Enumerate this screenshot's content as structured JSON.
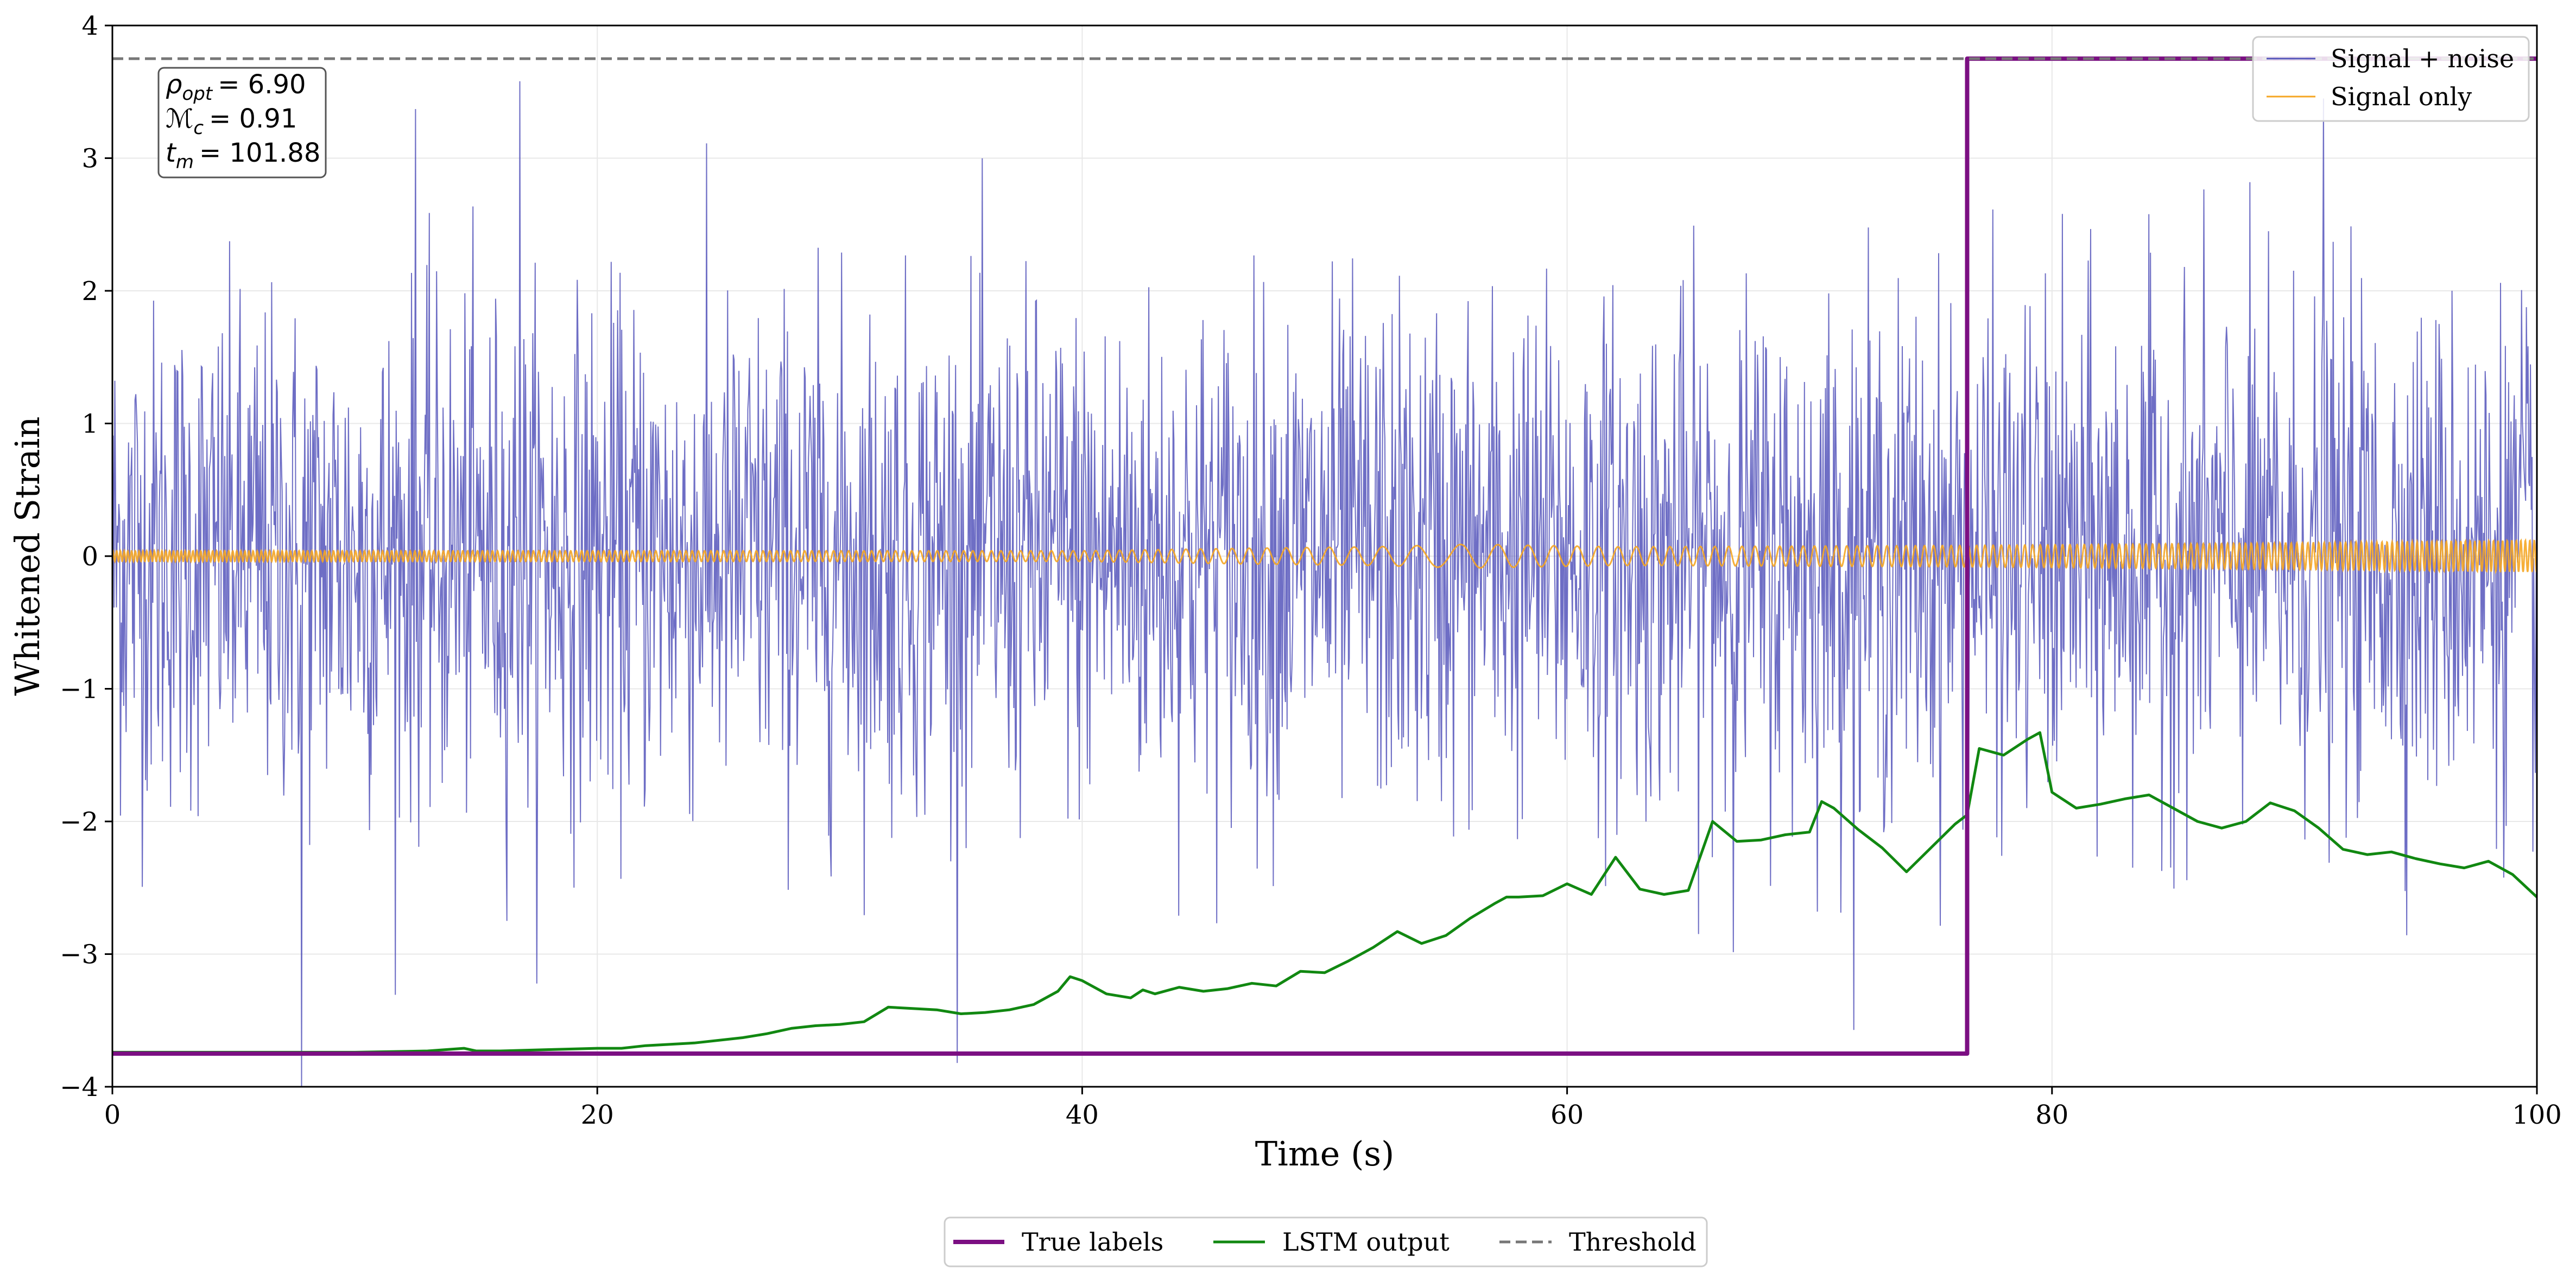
{
  "chart_data": {
    "type": "line",
    "title": "",
    "xlabel": "Time (s)",
    "ylabel": "Whitened Strain",
    "xlim": [
      0,
      100
    ],
    "ylim": [
      -4,
      4
    ],
    "x_ticks": [
      0,
      20,
      40,
      60,
      80,
      100
    ],
    "y_ticks": [
      -4,
      -3,
      -2,
      -1,
      0,
      1,
      2,
      3,
      4
    ],
    "grid": true,
    "annotation": {
      "lines": [
        {
          "symbol": "ρ",
          "sub": "opt",
          "value": "= 6.90"
        },
        {
          "symbol": "ℳ",
          "sub": "c",
          "value": "= 0.91"
        },
        {
          "symbol": "t",
          "sub": "m",
          "value": "= 101.88"
        }
      ]
    },
    "legend_upper": {
      "position": "top-right",
      "entries": [
        {
          "label": "Signal + noise",
          "color": "#5555bb"
        },
        {
          "label": "Signal only",
          "color": "#f5a623"
        }
      ]
    },
    "legend_lower": {
      "position": "bottom-center",
      "entries": [
        {
          "label": "True labels",
          "color": "#7b0f82",
          "style": "solid"
        },
        {
          "label": "LSTM output",
          "color": "#118811",
          "style": "solid"
        },
        {
          "label": "Threshold",
          "color": "#777777",
          "style": "dashed"
        }
      ]
    },
    "series": [
      {
        "name": "Signal + noise",
        "kind": "noise",
        "color": "#5555bb",
        "samples": 3000,
        "std": 0.95,
        "min": -4.0,
        "max": 3.62,
        "spikes": [
          {
            "x": 7.8,
            "y": -4.0
          },
          {
            "x": 16.8,
            "y": 3.58
          },
          {
            "x": 12.5,
            "y": 3.37
          },
          {
            "x": 91.2,
            "y": 3.45
          }
        ]
      },
      {
        "name": "Signal only",
        "kind": "chirp",
        "color": "#f5a623",
        "envelope": [
          {
            "x": 0,
            "a": 0.04
          },
          {
            "x": 40,
            "a": 0.04
          },
          {
            "x": 47,
            "a": 0.06
          },
          {
            "x": 52,
            "a": 0.07
          },
          {
            "x": 56,
            "a": 0.09
          },
          {
            "x": 62,
            "a": 0.07
          },
          {
            "x": 76,
            "a": 0.08
          },
          {
            "x": 90,
            "a": 0.1
          },
          {
            "x": 100,
            "a": 0.12
          }
        ]
      },
      {
        "name": "True labels",
        "kind": "step",
        "color": "#7b0f82",
        "x": [
          0,
          76.5,
          76.5,
          100
        ],
        "y": [
          -3.75,
          -3.75,
          3.75,
          3.75
        ]
      },
      {
        "name": "LSTM output",
        "kind": "line",
        "color": "#118811",
        "x": [
          0,
          10,
          13,
          14.5,
          15,
          16,
          18,
          20,
          21,
          22,
          24,
          26,
          27,
          28,
          29,
          30,
          31,
          32,
          33,
          34,
          35,
          36,
          37,
          38,
          39,
          39.5,
          40,
          41,
          42,
          42.5,
          43,
          44,
          45,
          46,
          47,
          48,
          49,
          50,
          51,
          52,
          53,
          54,
          55,
          56,
          57,
          57.5,
          58,
          59,
          60,
          61,
          62,
          63,
          64,
          65,
          66,
          67,
          68,
          69,
          70,
          70.5,
          71,
          72,
          73,
          74,
          75,
          76,
          76.5,
          77,
          78,
          79,
          79.5,
          80,
          81,
          82,
          83,
          84,
          85,
          86,
          87,
          88,
          89,
          90,
          91,
          92,
          93,
          94,
          95,
          96,
          97,
          98,
          99,
          100
        ],
        "y": [
          -3.74,
          -3.74,
          -3.73,
          -3.71,
          -3.73,
          -3.73,
          -3.72,
          -3.71,
          -3.71,
          -3.69,
          -3.67,
          -3.63,
          -3.6,
          -3.56,
          -3.54,
          -3.53,
          -3.51,
          -3.4,
          -3.41,
          -3.42,
          -3.45,
          -3.44,
          -3.42,
          -3.38,
          -3.28,
          -3.17,
          -3.2,
          -3.3,
          -3.33,
          -3.27,
          -3.3,
          -3.25,
          -3.28,
          -3.26,
          -3.22,
          -3.24,
          -3.13,
          -3.14,
          -3.05,
          -2.95,
          -2.83,
          -2.92,
          -2.86,
          -2.73,
          -2.62,
          -2.57,
          -2.57,
          -2.56,
          -2.47,
          -2.55,
          -2.27,
          -2.51,
          -2.55,
          -2.52,
          -2.0,
          -2.15,
          -2.14,
          -2.1,
          -2.08,
          -1.85,
          -1.9,
          -2.06,
          -2.2,
          -2.38,
          -2.2,
          -2.02,
          -1.95,
          -1.45,
          -1.5,
          -1.38,
          -1.33,
          -1.78,
          -1.9,
          -1.87,
          -1.83,
          -1.8,
          -1.9,
          -2.0,
          -2.05,
          -2.0,
          -1.86,
          -1.92,
          -2.05,
          -2.21,
          -2.25,
          -2.23,
          -2.28,
          -2.32,
          -2.35,
          -2.3,
          -2.4,
          -2.57
        ]
      },
      {
        "name": "Threshold",
        "kind": "hline",
        "color": "#777777",
        "y": 3.75
      }
    ]
  }
}
